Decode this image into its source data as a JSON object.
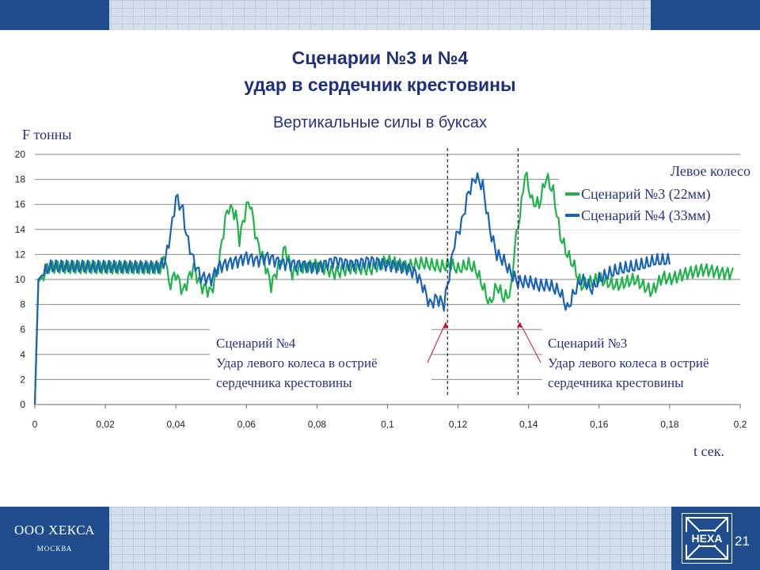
{
  "slide": {
    "title_line1": "Сценарии №3 и №4",
    "title_line2": "удар в сердечник крестовины",
    "company_name": "ООО ХЕКСА",
    "company_city": "МОСКВА",
    "logo_text": "HEXA",
    "page_number": "21",
    "colors": {
      "band": "#1e4c8c",
      "title": "#1f2f7a"
    }
  },
  "chart_data": {
    "type": "line",
    "title": "Вертикальные силы в буксах",
    "ylabel": "F тонны",
    "xlabel": "t сек.",
    "xlim": [
      0,
      0.2
    ],
    "ylim": [
      0,
      20
    ],
    "x_ticks": [
      "0",
      "0,02",
      "0,04",
      "0,06",
      "0,08",
      "0,1",
      "0,12",
      "0,14",
      "0,16",
      "0,18",
      "0,2"
    ],
    "y_ticks": [
      "0",
      "2",
      "4",
      "6",
      "8",
      "10",
      "12",
      "14",
      "16",
      "18",
      "20"
    ],
    "grid": "horizontal",
    "legend_title": "Левое колесо",
    "legend_position": "top-right",
    "series": [
      {
        "name": "Сценарий №3 (22мм)",
        "color": "#22b24c",
        "points": [
          [
            0,
            0
          ],
          [
            0.001,
            9.8
          ],
          [
            0.004,
            11
          ],
          [
            0.02,
            11
          ],
          [
            0.036,
            11
          ],
          [
            0.037,
            12
          ],
          [
            0.038,
            9.5
          ],
          [
            0.04,
            10.5
          ],
          [
            0.042,
            9
          ],
          [
            0.045,
            11
          ],
          [
            0.047,
            9.5
          ],
          [
            0.05,
            9
          ],
          [
            0.052,
            11
          ],
          [
            0.054,
            14.8
          ],
          [
            0.055,
            15.8
          ],
          [
            0.057,
            15.2
          ],
          [
            0.058,
            13.2
          ],
          [
            0.06,
            15.8
          ],
          [
            0.061,
            16.2
          ],
          [
            0.063,
            13
          ],
          [
            0.065,
            11.5
          ],
          [
            0.067,
            9.5
          ],
          [
            0.069,
            11
          ],
          [
            0.071,
            12.5
          ],
          [
            0.073,
            10.5
          ],
          [
            0.075,
            11
          ],
          [
            0.08,
            11.2
          ],
          [
            0.085,
            10.5
          ],
          [
            0.09,
            11
          ],
          [
            0.095,
            10.8
          ],
          [
            0.1,
            11.5
          ],
          [
            0.105,
            11
          ],
          [
            0.11,
            11.3
          ],
          [
            0.115,
            11
          ],
          [
            0.118,
            11.2
          ],
          [
            0.12,
            10.8
          ],
          [
            0.123,
            11.2
          ],
          [
            0.125,
            10.8
          ],
          [
            0.127,
            9.5
          ],
          [
            0.129,
            8
          ],
          [
            0.131,
            9.5
          ],
          [
            0.133,
            8.5
          ],
          [
            0.135,
            9
          ],
          [
            0.136,
            12.5
          ],
          [
            0.138,
            16
          ],
          [
            0.139,
            18.6
          ],
          [
            0.141,
            16.2
          ],
          [
            0.143,
            16
          ],
          [
            0.145,
            18.2
          ],
          [
            0.147,
            17
          ],
          [
            0.149,
            13.5
          ],
          [
            0.151,
            12
          ],
          [
            0.153,
            11
          ],
          [
            0.155,
            9.5
          ],
          [
            0.16,
            10
          ],
          [
            0.165,
            9.5
          ],
          [
            0.17,
            10
          ],
          [
            0.175,
            9
          ],
          [
            0.178,
            10.2
          ],
          [
            0.18,
            10
          ],
          [
            0.185,
            10.5
          ],
          [
            0.19,
            10.8
          ],
          [
            0.195,
            10.5
          ],
          [
            0.198,
            10.5
          ]
        ]
      },
      {
        "name": "Сценарий №4 (33мм)",
        "color": "#1b64b4",
        "points": [
          [
            0,
            0
          ],
          [
            0.001,
            10
          ],
          [
            0.004,
            11
          ],
          [
            0.02,
            11
          ],
          [
            0.035,
            11
          ],
          [
            0.037,
            11.5
          ],
          [
            0.039,
            14.5
          ],
          [
            0.04,
            16.6
          ],
          [
            0.042,
            15.5
          ],
          [
            0.043,
            13.5
          ],
          [
            0.045,
            11.5
          ],
          [
            0.047,
            10.2
          ],
          [
            0.05,
            10
          ],
          [
            0.052,
            11
          ],
          [
            0.055,
            11.3
          ],
          [
            0.058,
            11.5
          ],
          [
            0.06,
            11.8
          ],
          [
            0.063,
            11.5
          ],
          [
            0.066,
            11.8
          ],
          [
            0.07,
            11.3
          ],
          [
            0.075,
            11.2
          ],
          [
            0.08,
            11
          ],
          [
            0.085,
            11.5
          ],
          [
            0.09,
            11.2
          ],
          [
            0.095,
            11.5
          ],
          [
            0.1,
            11.2
          ],
          [
            0.105,
            11
          ],
          [
            0.108,
            10.5
          ],
          [
            0.11,
            9.5
          ],
          [
            0.112,
            8
          ],
          [
            0.114,
            8.5
          ],
          [
            0.116,
            8
          ],
          [
            0.117,
            9.5
          ],
          [
            0.119,
            13
          ],
          [
            0.121,
            14.5
          ],
          [
            0.123,
            17
          ],
          [
            0.125,
            18.2
          ],
          [
            0.127,
            17.5
          ],
          [
            0.129,
            14
          ],
          [
            0.131,
            12
          ],
          [
            0.133,
            11.5
          ],
          [
            0.135,
            10.5
          ],
          [
            0.137,
            9.8
          ],
          [
            0.14,
            9.8
          ],
          [
            0.143,
            9.5
          ],
          [
            0.146,
            9.5
          ],
          [
            0.149,
            9
          ],
          [
            0.151,
            7.6
          ],
          [
            0.153,
            9
          ],
          [
            0.155,
            10
          ],
          [
            0.158,
            9.2
          ],
          [
            0.16,
            10
          ],
          [
            0.163,
            10.5
          ],
          [
            0.166,
            10.8
          ],
          [
            0.17,
            11
          ],
          [
            0.173,
            11.2
          ],
          [
            0.176,
            11.5
          ],
          [
            0.18,
            11.5
          ]
        ]
      }
    ],
    "markers": [
      {
        "x": 0.117,
        "label_lines": [
          "Сценарий №4",
          "Удар левого колеса в остриё",
          "сердечника крестовины"
        ]
      },
      {
        "x": 0.137,
        "label_lines": [
          "Сценарий №3",
          "Удар левого колеса в остриё",
          "сердечника крестовины"
        ]
      }
    ]
  }
}
